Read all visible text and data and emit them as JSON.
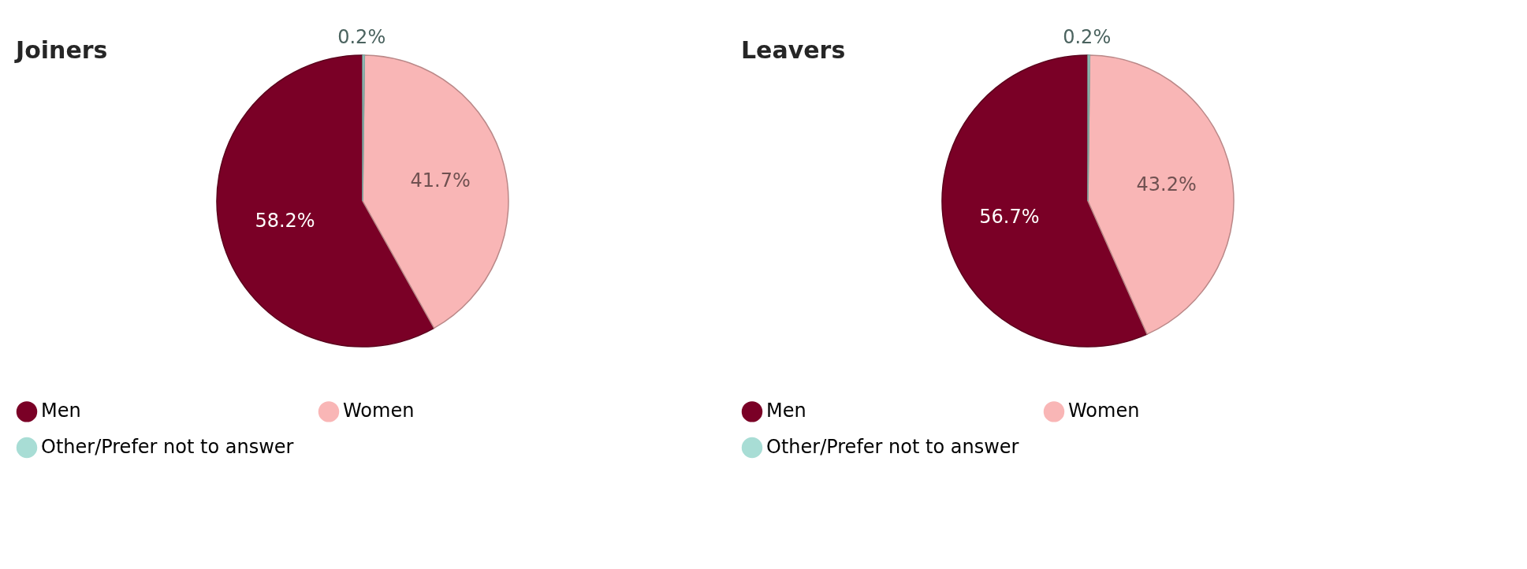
{
  "chart_data": [
    {
      "type": "pie",
      "title": "Joiners",
      "categories": [
        "Men",
        "Women",
        "Other/Prefer not to answer"
      ],
      "values": [
        58.2,
        41.7,
        0.2
      ],
      "colors": [
        "#7a0026",
        "#f9b6b6",
        "#a8ddd5"
      ],
      "value_labels": [
        "58.2%",
        "41.7%",
        "0.2%"
      ],
      "legend": "bottom"
    },
    {
      "type": "pie",
      "title": "Leavers",
      "categories": [
        "Men",
        "Women",
        "Other/Prefer not to answer"
      ],
      "values": [
        56.7,
        43.2,
        0.2
      ],
      "colors": [
        "#7a0026",
        "#f9b6b6",
        "#a8ddd5"
      ],
      "value_labels": [
        "56.7%",
        "43.2%",
        "0.2%"
      ],
      "legend": "bottom"
    }
  ]
}
